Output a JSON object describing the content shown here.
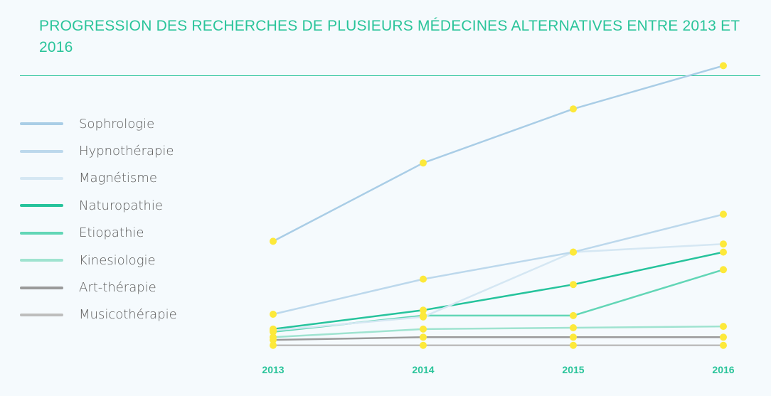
{
  "title": "PROGRESSION DES RECHERCHES DE PLUSIEURS MÉDECINES ALTERNATIVES ENTRE 2013 ET 2016",
  "colors": {
    "accent": "#2ac49a",
    "marker": "#fde93a",
    "background": "#f5fafd"
  },
  "chart_data": {
    "type": "line",
    "title": "PROGRESSION DES RECHERCHES DE PLUSIEURS MÉDECINES ALTERNATIVES ENTRE 2013 ET 2016",
    "xlabel": "",
    "ylabel": "",
    "grid": false,
    "legend_position": "left",
    "x": [
      "2013",
      "2014",
      "2015",
      "2016"
    ],
    "ylim": [
      0,
      100
    ],
    "series": [
      {
        "name": "Sophrologie",
        "color": "#a9cde6",
        "values": [
          37,
          66,
          86,
          102
        ]
      },
      {
        "name": "Hypnothérapie",
        "color": "#bcd8ec",
        "values": [
          10,
          23,
          33,
          47
        ]
      },
      {
        "name": "Magnétisme",
        "color": "#d5e7f3",
        "values": [
          4,
          9,
          33,
          36
        ]
      },
      {
        "name": "Naturopathie",
        "color": "#26c39c",
        "values": [
          4.5,
          11.5,
          21,
          33
        ]
      },
      {
        "name": "Etiopathie",
        "color": "#62d6b6",
        "values": [
          3.5,
          9.5,
          9.5,
          26.5
        ]
      },
      {
        "name": "Kinesiologie",
        "color": "#9fe3d0",
        "values": [
          1.5,
          4.5,
          5,
          5.5
        ]
      },
      {
        "name": "Art-thérapie",
        "color": "#9a9a9a",
        "values": [
          0.5,
          1.5,
          1.5,
          1.5
        ]
      },
      {
        "name": "Musicothérapie",
        "color": "#bdbdbd",
        "values": [
          -1.5,
          -1.5,
          -1.5,
          -1.5
        ]
      }
    ]
  }
}
